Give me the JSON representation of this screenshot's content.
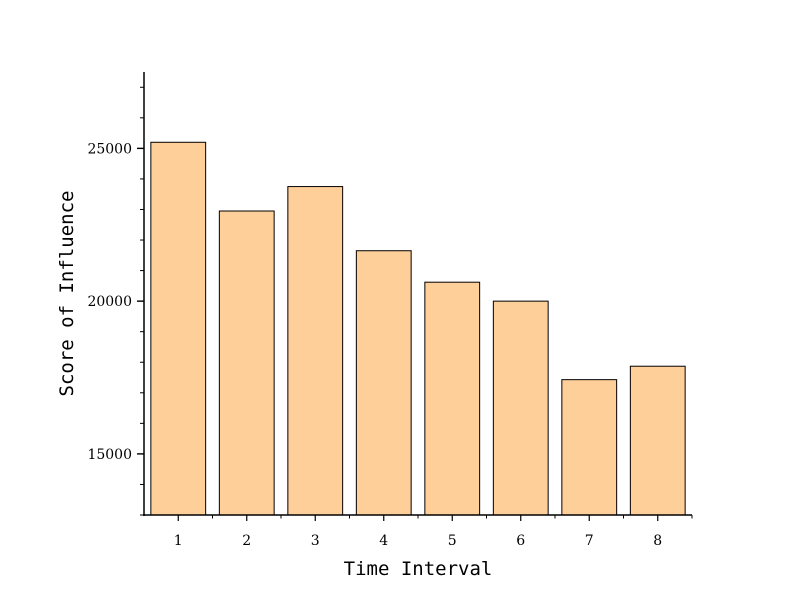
{
  "chart_data": {
    "type": "bar",
    "title": "",
    "xlabel": "Time Interval",
    "ylabel": "Score of Influence",
    "categories": [
      "1",
      "2",
      "3",
      "4",
      "5",
      "6",
      "7",
      "8"
    ],
    "values": [
      25200,
      22950,
      23750,
      21650,
      20620,
      20000,
      17430,
      17870
    ],
    "ylim": [
      13000,
      27500
    ],
    "yticks": [
      15000,
      20000,
      25000
    ],
    "ytick_labels": [
      "15000",
      "20000",
      "25000"
    ],
    "y_minor_step": 1000,
    "grid": false,
    "legend": "none",
    "bar_color": "#FFCF99",
    "bar_edge_color": "#000000"
  }
}
